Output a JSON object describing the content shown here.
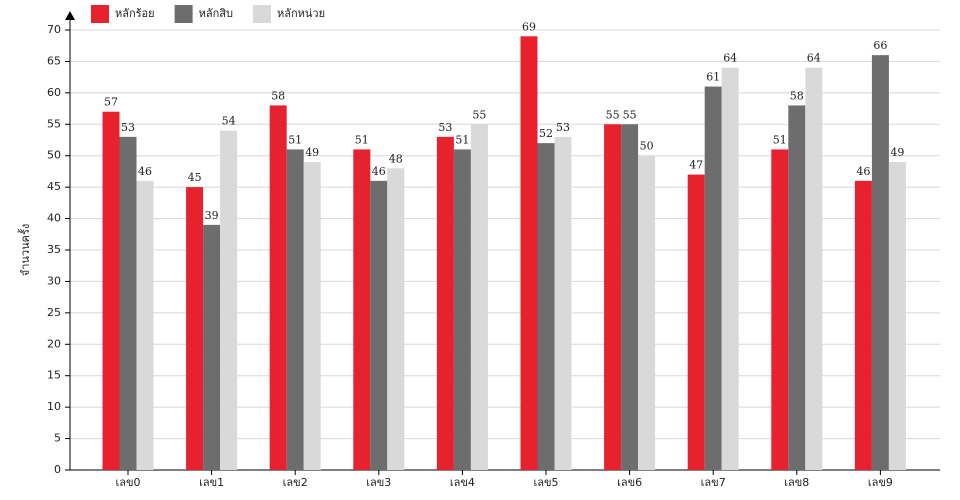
{
  "chart_data": {
    "type": "bar",
    "y_label": "จำนวนครั้ง",
    "categories": [
      "เลข0",
      "เลข1",
      "เลข2",
      "เลข3",
      "เลข4",
      "เลข5",
      "เลข6",
      "เลข7",
      "เลข8",
      "เลข9"
    ],
    "series": [
      {
        "name": "หลักร้อย",
        "color": "#e8212f",
        "values": [
          57,
          45,
          58,
          51,
          53,
          69,
          55,
          47,
          51,
          46
        ]
      },
      {
        "name": "หลักสิบ",
        "color": "#6d6d6d",
        "values": [
          53,
          39,
          51,
          46,
          51,
          52,
          55,
          61,
          58,
          66
        ]
      },
      {
        "name": "หลักหน่วย",
        "color": "#d9d9d9",
        "values": [
          46,
          54,
          49,
          48,
          55,
          53,
          50,
          64,
          64,
          49
        ]
      }
    ],
    "ylim": [
      0,
      70
    ],
    "yticks": [
      0,
      5,
      10,
      15,
      20,
      25,
      30,
      35,
      40,
      45,
      50,
      55,
      60,
      65,
      70
    ],
    "grid": true,
    "legend": "top-left"
  }
}
